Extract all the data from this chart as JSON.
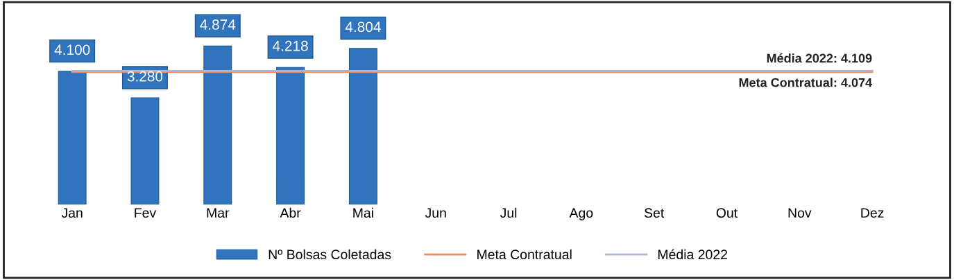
{
  "chart_data": {
    "type": "bar",
    "categories": [
      "Jan",
      "Fev",
      "Mar",
      "Abr",
      "Mai",
      "Jun",
      "Jul",
      "Ago",
      "Set",
      "Out",
      "Nov",
      "Dez"
    ],
    "series": [
      {
        "name": "Nº Bolsas Coletadas",
        "color": "#2f74bd",
        "values": [
          4100,
          3280,
          4874,
          4218,
          4804,
          null,
          null,
          null,
          null,
          null,
          null,
          null
        ],
        "value_labels": [
          "4.100",
          "3.280",
          "4.874",
          "4.218",
          "4.804",
          null,
          null,
          null,
          null,
          null,
          null,
          null
        ]
      },
      {
        "name": "Meta Contratual",
        "type": "line",
        "color": "#f08a5d",
        "values": [
          4074,
          4074,
          4074,
          4074,
          4074,
          4074,
          4074,
          4074,
          4074,
          4074,
          4074,
          4074
        ]
      },
      {
        "name": "Média 2022",
        "type": "line",
        "color": "#aab6d6",
        "values": [
          4109,
          4109,
          4109,
          4109,
          4109,
          4109,
          4109,
          4109,
          4109,
          4109,
          4109,
          4109
        ]
      }
    ],
    "annotations": [
      {
        "text": "Média 2022: 4.109",
        "x": "Dez",
        "y": 4109
      },
      {
        "text": "Meta Contratual: 4.074",
        "x": "Dez",
        "y": 4074
      }
    ],
    "tick_labels": "x",
    "grid": false,
    "legend": "bottom"
  }
}
